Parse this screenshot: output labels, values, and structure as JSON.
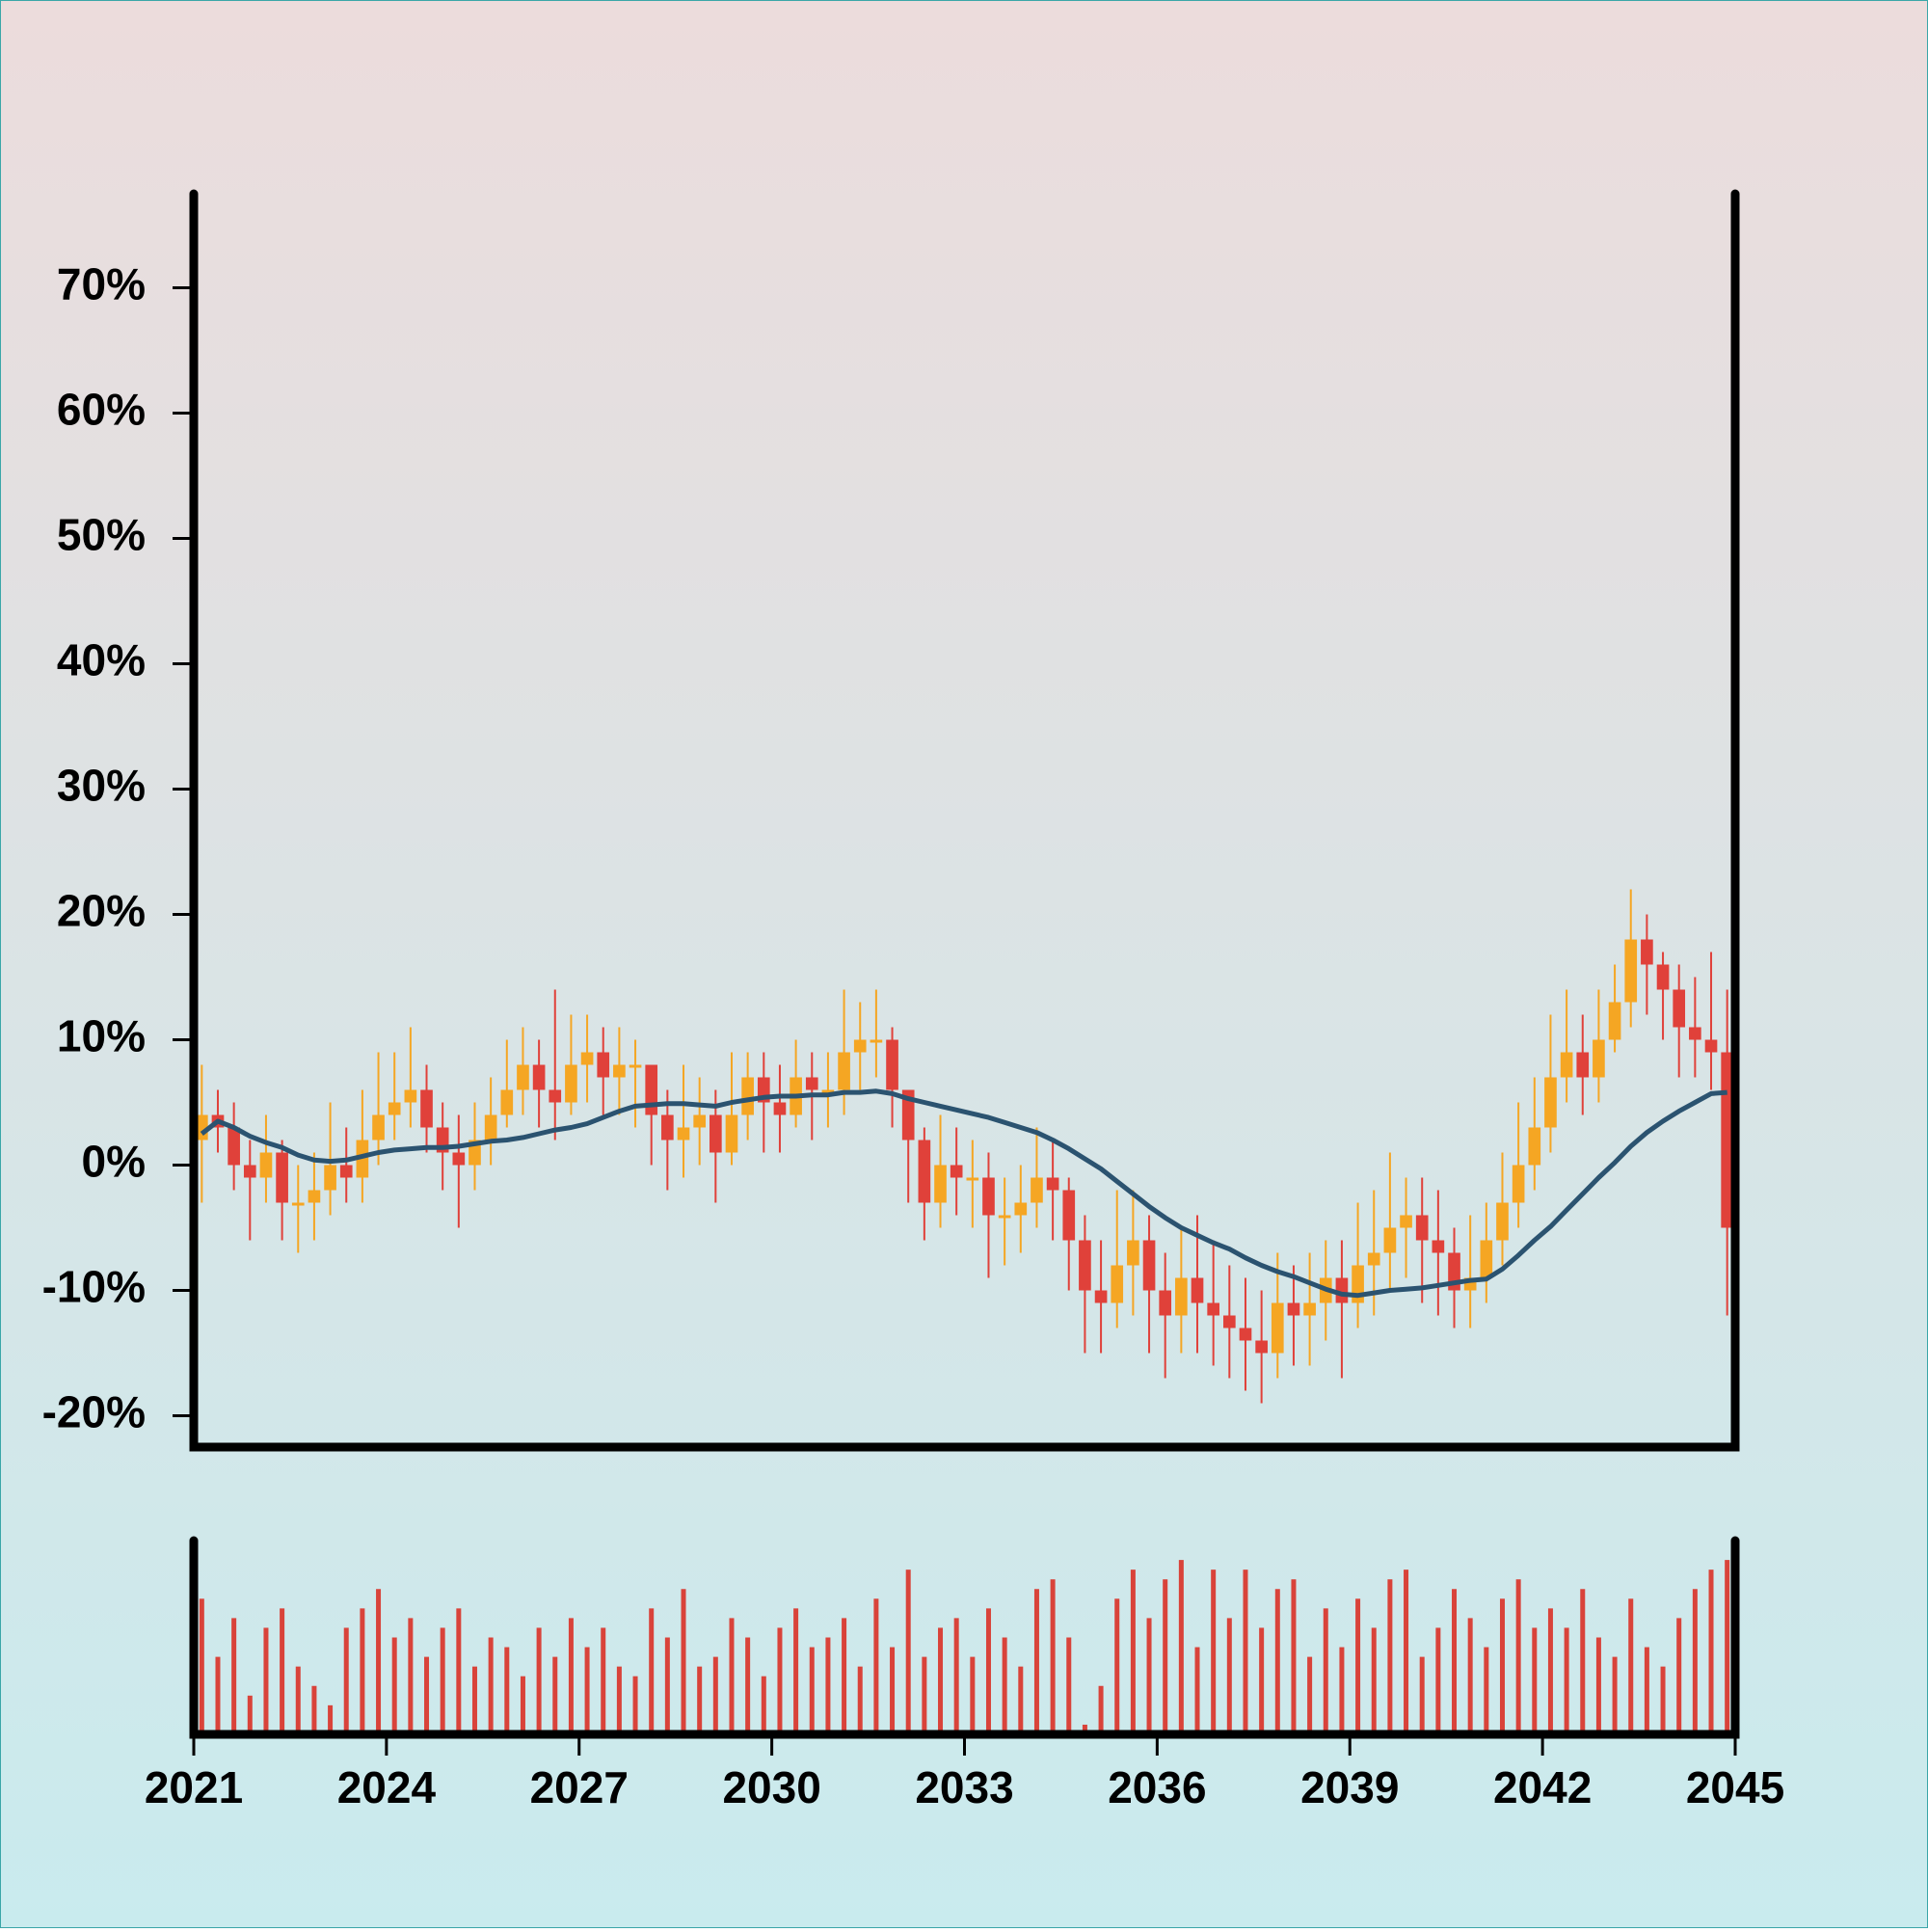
{
  "chart_data": {
    "type": "candlestick",
    "x": [
      2021,
      2021.25,
      2021.5,
      2021.75,
      2022,
      2022.25,
      2022.5,
      2022.75,
      2023,
      2023.25,
      2023.5,
      2023.75,
      2024,
      2024.25,
      2024.5,
      2024.75,
      2025,
      2025.25,
      2025.5,
      2025.75,
      2026,
      2026.25,
      2026.5,
      2026.75,
      2027,
      2027.25,
      2027.5,
      2027.75,
      2028,
      2028.25,
      2028.5,
      2028.75,
      2029,
      2029.25,
      2029.5,
      2029.75,
      2030,
      2030.25,
      2030.5,
      2030.75,
      2031,
      2031.25,
      2031.5,
      2031.75,
      2032,
      2032.25,
      2032.5,
      2032.75,
      2033,
      2033.25,
      2033.5,
      2033.75,
      2034,
      2034.25,
      2034.5,
      2034.75,
      2035,
      2035.25,
      2035.5,
      2035.75,
      2036,
      2036.25,
      2036.5,
      2036.75,
      2037,
      2037.25,
      2037.5,
      2037.75,
      2038,
      2038.25,
      2038.5,
      2038.75,
      2039,
      2039.25,
      2039.5,
      2039.75,
      2040,
      2040.25,
      2040.5,
      2040.75,
      2041,
      2041.25,
      2041.5,
      2041.75,
      2042,
      2042.25,
      2042.5,
      2042.75,
      2043,
      2043.25,
      2043.5,
      2043.75,
      2044,
      2044.25,
      2044.5,
      2044.75
    ],
    "open": [
      2,
      4,
      3,
      0,
      -1,
      1,
      -3,
      -3,
      -2,
      0,
      -1,
      2,
      4,
      5,
      6,
      3,
      1,
      0,
      2,
      4,
      6,
      8,
      6,
      5,
      8,
      9,
      7,
      8,
      8,
      4,
      2,
      3,
      4,
      1,
      4,
      7,
      5,
      4,
      7,
      6,
      6,
      9,
      10,
      10,
      6,
      2,
      -3,
      0,
      -1,
      -1,
      -4,
      -4,
      -3,
      -1,
      -2,
      -6,
      -10,
      -11,
      -8,
      -6,
      -10,
      -12,
      -9,
      -11,
      -12,
      -13,
      -14,
      -15,
      -11,
      -12,
      -11,
      -9,
      -11,
      -8,
      -7,
      -5,
      -4,
      -6,
      -7,
      -10,
      -9,
      -6,
      -3,
      0,
      3,
      7,
      9,
      7,
      10,
      13,
      18,
      16,
      14,
      11,
      10,
      9
    ],
    "high": [
      8,
      6,
      5,
      2,
      4,
      2,
      0,
      1,
      5,
      3,
      6,
      9,
      9,
      11,
      8,
      5,
      4,
      5,
      7,
      10,
      11,
      10,
      14,
      12,
      12,
      11,
      11,
      10,
      8,
      6,
      8,
      7,
      6,
      9,
      9,
      9,
      8,
      10,
      9,
      9,
      14,
      13,
      14,
      11,
      6,
      3,
      4,
      3,
      2,
      1,
      -1,
      0,
      3,
      2,
      -1,
      -4,
      -6,
      -2,
      -2,
      -4,
      -7,
      -5,
      -4,
      -6,
      -8,
      -9,
      -10,
      -7,
      -8,
      -7,
      -6,
      -6,
      -3,
      -2,
      1,
      -1,
      -1,
      -2,
      -5,
      -4,
      -3,
      1,
      5,
      7,
      12,
      14,
      12,
      14,
      16,
      22,
      20,
      17,
      16,
      15,
      17,
      14
    ],
    "low": [
      -3,
      1,
      -2,
      -6,
      -3,
      -6,
      -7,
      -6,
      -4,
      -3,
      -3,
      0,
      2,
      3,
      1,
      -2,
      -5,
      -2,
      0,
      3,
      4,
      3,
      2,
      4,
      5,
      4,
      4,
      3,
      0,
      -2,
      -1,
      0,
      -3,
      0,
      2,
      1,
      1,
      3,
      2,
      3,
      4,
      6,
      7,
      3,
      -3,
      -6,
      -5,
      -4,
      -5,
      -9,
      -8,
      -7,
      -5,
      -6,
      -10,
      -15,
      -15,
      -13,
      -12,
      -15,
      -17,
      -15,
      -15,
      -16,
      -17,
      -18,
      -19,
      -17,
      -16,
      -16,
      -14,
      -17,
      -13,
      -12,
      -10,
      -9,
      -11,
      -12,
      -13,
      -13,
      -11,
      -8,
      -5,
      -2,
      1,
      5,
      4,
      5,
      9,
      11,
      12,
      10,
      7,
      7,
      6,
      -12
    ],
    "close": [
      4,
      3,
      0,
      -1,
      1,
      -3,
      -3,
      -2,
      0,
      -1,
      2,
      4,
      5,
      6,
      3,
      1,
      0,
      2,
      4,
      6,
      8,
      6,
      5,
      8,
      9,
      7,
      8,
      8,
      4,
      2,
      3,
      4,
      1,
      4,
      7,
      5,
      4,
      7,
      6,
      6,
      9,
      10,
      10,
      6,
      2,
      -3,
      0,
      -1,
      -1,
      -4,
      -4,
      -3,
      -1,
      -2,
      -6,
      -10,
      -11,
      -8,
      -6,
      -10,
      -12,
      -9,
      -11,
      -12,
      -13,
      -14,
      -15,
      -11,
      -12,
      -11,
      -9,
      -11,
      -8,
      -7,
      -5,
      -4,
      -6,
      -7,
      -10,
      -9,
      -6,
      -3,
      0,
      3,
      7,
      9,
      7,
      10,
      13,
      18,
      16,
      14,
      11,
      10,
      9,
      -5
    ],
    "up_color": "#f5a623",
    "down_color": "#e0413a",
    "ma": {
      "color": "#2b5370",
      "values": [
        2.5,
        3.5,
        3,
        2.3,
        1.8,
        1.4,
        0.8,
        0.4,
        0.3,
        0.4,
        0.7,
        1.0,
        1.2,
        1.3,
        1.4,
        1.4,
        1.5,
        1.7,
        1.9,
        2.0,
        2.2,
        2.5,
        2.8,
        3.0,
        3.3,
        3.8,
        4.3,
        4.7,
        4.8,
        4.9,
        4.9,
        4.8,
        4.7,
        5.0,
        5.2,
        5.4,
        5.5,
        5.5,
        5.6,
        5.6,
        5.8,
        5.8,
        5.9,
        5.7,
        5.3,
        5.0,
        4.7,
        4.4,
        4.1,
        3.8,
        3.4,
        3.0,
        2.6,
        2.0,
        1.3,
        0.5,
        -0.3,
        -1.3,
        -2.3,
        -3.3,
        -4.2,
        -5.0,
        -5.6,
        -6.2,
        -6.7,
        -7.4,
        -8.0,
        -8.5,
        -8.9,
        -9.4,
        -9.9,
        -10.3,
        -10.4,
        -10.2,
        -10.0,
        -9.9,
        -9.8,
        -9.6,
        -9.4,
        -9.2,
        -9.1,
        -8.3,
        -7.2,
        -6.0,
        -4.9,
        -3.6,
        -2.3,
        -1.0,
        0.2,
        1.5,
        2.6,
        3.5,
        4.3,
        5.0,
        5.7,
        5.8
      ]
    },
    "volume": {
      "color": "#d9433a",
      "ylim": [
        0,
        100
      ],
      "values": [
        70,
        40,
        60,
        20,
        55,
        65,
        35,
        25,
        15,
        55,
        65,
        75,
        50,
        60,
        40,
        55,
        65,
        35,
        50,
        45,
        30,
        55,
        40,
        60,
        45,
        55,
        35,
        30,
        65,
        50,
        75,
        35,
        40,
        60,
        50,
        30,
        55,
        65,
        45,
        50,
        60,
        35,
        70,
        45,
        85,
        40,
        55,
        60,
        40,
        65,
        50,
        35,
        75,
        80,
        50,
        5,
        25,
        70,
        85,
        60,
        80,
        90,
        45,
        85,
        60,
        85,
        55,
        75,
        80,
        40,
        65,
        45,
        70,
        55,
        80,
        85,
        40,
        55,
        75,
        60,
        45,
        70,
        80,
        55,
        65,
        55,
        75,
        50,
        40,
        70,
        45,
        35,
        60,
        75,
        85,
        90
      ]
    },
    "xlim": [
      2021,
      2045
    ],
    "xticks": [
      2021,
      2024,
      2027,
      2030,
      2033,
      2036,
      2039,
      2042,
      2045
    ],
    "ylim": [
      -22.5,
      77.5
    ],
    "yticks": [
      {
        "value": -20,
        "label": "-20%"
      },
      {
        "value": -10,
        "label": "-10%"
      },
      {
        "value": 0,
        "label": "0%"
      },
      {
        "value": 10,
        "label": "10%"
      },
      {
        "value": 20,
        "label": "20%"
      },
      {
        "value": 30,
        "label": "30%"
      },
      {
        "value": 40,
        "label": "40%"
      },
      {
        "value": 50,
        "label": "50%"
      },
      {
        "value": 60,
        "label": "60%"
      },
      {
        "value": 70,
        "label": "70%"
      }
    ]
  }
}
